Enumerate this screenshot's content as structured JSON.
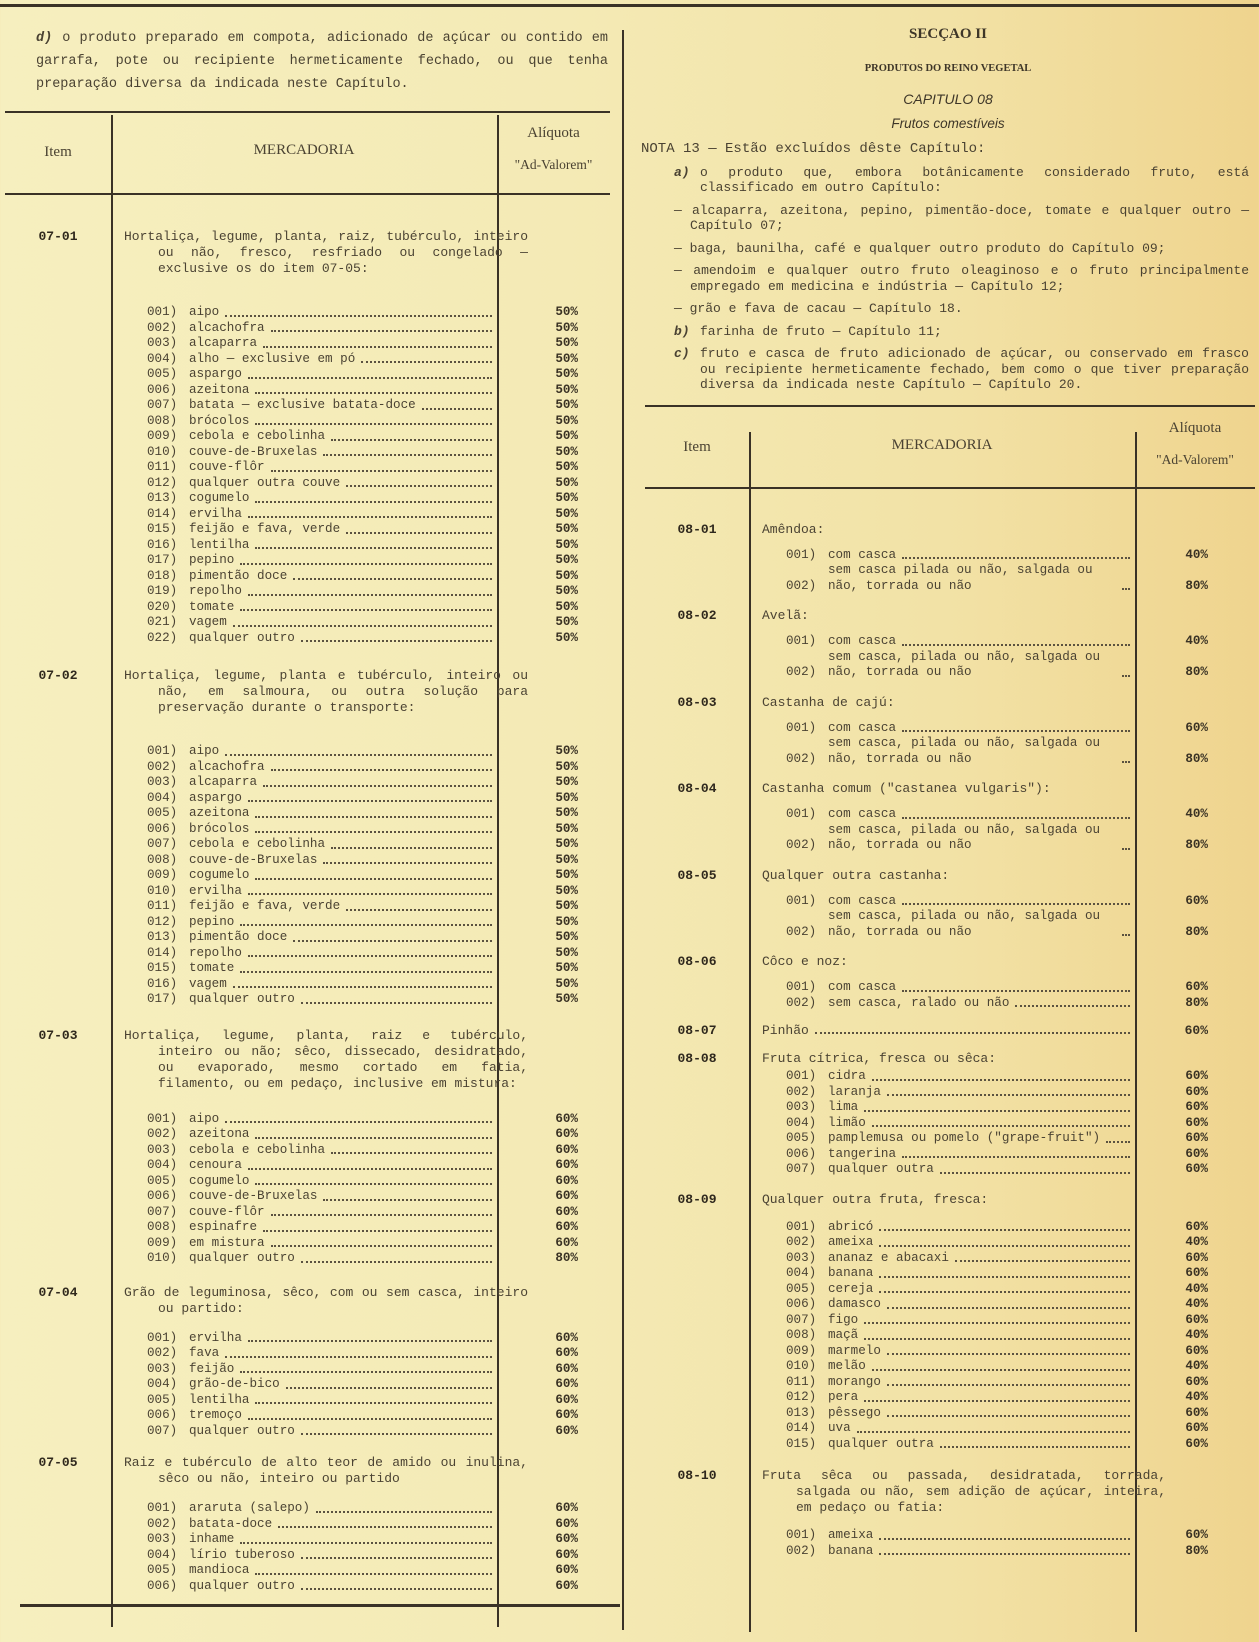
{
  "left": {
    "intro_note": {
      "marker": "d)",
      "text": "o produto preparado em compota, adicionado de açúcar ou contido em garrafa, pote ou recipiente hermeticamente fechado, ou que tenha preparação diversa da indicada neste Capítulo."
    },
    "table_header": {
      "item": "Item",
      "mercadoria": "MERCADORIA",
      "aliquota": "Alíquota",
      "ad_valorem": "\"Ad-Valorem\""
    },
    "groups": [
      {
        "code": "07-01",
        "description": "Hortaliça, legume, planta, raiz, tubérculo, inteiro ou não, fresco, resfriado ou congelado — exclusive os do item 07-05:",
        "items": [
          {
            "code": "001)",
            "label": "aipo",
            "rate": "50%"
          },
          {
            "code": "002)",
            "label": "alcachofra",
            "rate": "50%"
          },
          {
            "code": "003)",
            "label": "alcaparra",
            "rate": "50%"
          },
          {
            "code": "004)",
            "label": "alho — exclusive em pó",
            "rate": "50%"
          },
          {
            "code": "005)",
            "label": "aspargo",
            "rate": "50%"
          },
          {
            "code": "006)",
            "label": "azeitona",
            "rate": "50%"
          },
          {
            "code": "007)",
            "label": "batata — exclusive batata-doce",
            "rate": "50%"
          },
          {
            "code": "008)",
            "label": "brócolos",
            "rate": "50%"
          },
          {
            "code": "009)",
            "label": "cebola e cebolinha",
            "rate": "50%"
          },
          {
            "code": "010)",
            "label": "couve-de-Bruxelas",
            "rate": "50%"
          },
          {
            "code": "011)",
            "label": "couve-flôr",
            "rate": "50%"
          },
          {
            "code": "012)",
            "label": "qualquer outra couve",
            "rate": "50%"
          },
          {
            "code": "013)",
            "label": "cogumelo",
            "rate": "50%"
          },
          {
            "code": "014)",
            "label": "ervilha",
            "rate": "50%"
          },
          {
            "code": "015)",
            "label": "feijão e fava, verde",
            "rate": "50%"
          },
          {
            "code": "016)",
            "label": "lentilha",
            "rate": "50%"
          },
          {
            "code": "017)",
            "label": "pepino",
            "rate": "50%"
          },
          {
            "code": "018)",
            "label": "pimentão doce",
            "rate": "50%"
          },
          {
            "code": "019)",
            "label": "repolho",
            "rate": "50%"
          },
          {
            "code": "020)",
            "label": "tomate",
            "rate": "50%"
          },
          {
            "code": "021)",
            "label": "vagem",
            "rate": "50%"
          },
          {
            "code": "022)",
            "label": "qualquer outro",
            "rate": "50%"
          }
        ]
      },
      {
        "code": "07-02",
        "description": "Hortaliça, legume, planta e tubérculo, inteiro ou não, em salmoura, ou outra solução para preservação durante o transporte:",
        "items": [
          {
            "code": "001)",
            "label": "aipo",
            "rate": "50%"
          },
          {
            "code": "002)",
            "label": "alcachofra",
            "rate": "50%"
          },
          {
            "code": "003)",
            "label": "alcaparra",
            "rate": "50%"
          },
          {
            "code": "004)",
            "label": "aspargo",
            "rate": "50%"
          },
          {
            "code": "005)",
            "label": "azeitona",
            "rate": "50%"
          },
          {
            "code": "006)",
            "label": "brócolos",
            "rate": "50%"
          },
          {
            "code": "007)",
            "label": "cebola e cebolinha",
            "rate": "50%"
          },
          {
            "code": "008)",
            "label": "couve-de-Bruxelas",
            "rate": "50%"
          },
          {
            "code": "009)",
            "label": "cogumelo",
            "rate": "50%"
          },
          {
            "code": "010)",
            "label": "ervilha",
            "rate": "50%"
          },
          {
            "code": "011)",
            "label": "feijão e fava, verde",
            "rate": "50%"
          },
          {
            "code": "012)",
            "label": "pepino",
            "rate": "50%"
          },
          {
            "code": "013)",
            "label": "pimentão doce",
            "rate": "50%"
          },
          {
            "code": "014)",
            "label": "repolho",
            "rate": "50%"
          },
          {
            "code": "015)",
            "label": "tomate",
            "rate": "50%"
          },
          {
            "code": "016)",
            "label": "vagem",
            "rate": "50%"
          },
          {
            "code": "017)",
            "label": "qualquer outro",
            "rate": "50%"
          }
        ]
      },
      {
        "code": "07-03",
        "description": "Hortaliça, legume, planta, raiz e tubérculo, inteiro ou não; sêco, dissecado, desidratado, ou evaporado, mesmo cortado em fatia, filamento, ou em pedaço, inclusive em mistura:",
        "items": [
          {
            "code": "001)",
            "label": "aipo",
            "rate": "60%"
          },
          {
            "code": "002)",
            "label": "azeitona",
            "rate": "60%"
          },
          {
            "code": "003)",
            "label": "cebola e cebolinha",
            "rate": "60%"
          },
          {
            "code": "004)",
            "label": "cenoura",
            "rate": "60%"
          },
          {
            "code": "005)",
            "label": "cogumelo",
            "rate": "60%"
          },
          {
            "code": "006)",
            "label": "couve-de-Bruxelas",
            "rate": "60%"
          },
          {
            "code": "007)",
            "label": "couve-flôr",
            "rate": "60%"
          },
          {
            "code": "008)",
            "label": "espinafre",
            "rate": "60%"
          },
          {
            "code": "009)",
            "label": "em mistura",
            "rate": "60%"
          },
          {
            "code": "010)",
            "label": "qualquer outro",
            "rate": "80%"
          }
        ]
      },
      {
        "code": "07-04",
        "description": "Grão de leguminosa, sêco, com ou sem casca, inteiro ou partido:",
        "items": [
          {
            "code": "001)",
            "label": "ervilha",
            "rate": "60%"
          },
          {
            "code": "002)",
            "label": "fava",
            "rate": "60%"
          },
          {
            "code": "003)",
            "label": "feijão",
            "rate": "60%"
          },
          {
            "code": "004)",
            "label": "grão-de-bico",
            "rate": "60%"
          },
          {
            "code": "005)",
            "label": "lentilha",
            "rate": "60%"
          },
          {
            "code": "006)",
            "label": "tremoço",
            "rate": "60%"
          },
          {
            "code": "007)",
            "label": "qualquer outro",
            "rate": "60%"
          }
        ]
      },
      {
        "code": "07-05",
        "description": "Raiz e tubérculo de alto teor de amido ou inulina, sêco ou não, inteiro ou partido",
        "items": [
          {
            "code": "001)",
            "label": "araruta (salepo)",
            "rate": "60%"
          },
          {
            "code": "002)",
            "label": "batata-doce",
            "rate": "60%"
          },
          {
            "code": "003)",
            "label": "inhame",
            "rate": "60%"
          },
          {
            "code": "004)",
            "label": "lírio tuberoso",
            "rate": "60%"
          },
          {
            "code": "005)",
            "label": "mandioca",
            "rate": "60%"
          },
          {
            "code": "006)",
            "label": "qualquer outro",
            "rate": "60%"
          }
        ]
      }
    ]
  },
  "right": {
    "section": "SECÇAO II",
    "section_title": "PRODUTOS DO REINO VEGETAL",
    "chapter": "CAPITULO 08",
    "chapter_title": "Frutos comestíveis",
    "nota_title": "NOTA 13 — Estão excluídos dêste Capítulo:",
    "nota_a": {
      "marker": "a)",
      "text": "o produto que, embora botânicamente considerado fruto, está classificado em outro Capítulo:"
    },
    "nota_dashes": [
      "— alcaparra, azeitona, pepino, pimentão-doce, tomate e qualquer outro — Capítulo 07;",
      "— baga, baunilha, café e qualquer outro produto do Capítulo 09;",
      "— amendoim e qualquer outro fruto oleaginoso e o fruto principalmente empregado em medicina e indústria — Capítulo 12;",
      "— grão e fava de cacau — Capítulo 18."
    ],
    "nota_b": {
      "marker": "b)",
      "text": "farinha de fruto — Capítulo 11;"
    },
    "nota_c": {
      "marker": "c)",
      "text": "fruto e casca de fruto adicionado de açúcar, ou conservado em frasco ou recipiente hermeticamente fechado, bem como o que tiver preparação diversa da indicada neste Capítulo — Capítulo 20."
    },
    "table_header": {
      "item": "Item",
      "mercadoria": "MERCADORIA",
      "aliquota": "Alíquota",
      "ad_valorem": "\"Ad-Valorem\""
    },
    "groups": [
      {
        "code": "08-01",
        "description": "Amêndoa:",
        "items": [
          {
            "code": "001)",
            "label": "com casca",
            "rate": "40%"
          },
          {
            "code": "002)",
            "label": "sem casca pilada ou não, salgada ou não, torrada ou não",
            "rate": "80%"
          }
        ]
      },
      {
        "code": "08-02",
        "description": "Avelã:",
        "items": [
          {
            "code": "001)",
            "label": "com casca",
            "rate": "40%"
          },
          {
            "code": "002)",
            "label": "sem casca, pilada ou não, salgada ou não, torrada ou não",
            "rate": "80%"
          }
        ]
      },
      {
        "code": "08-03",
        "description": "Castanha de cajú:",
        "items": [
          {
            "code": "001)",
            "label": "com casca",
            "rate": "60%"
          },
          {
            "code": "002)",
            "label": "sem casca, pilada ou não, salgada ou não, torrada ou não",
            "rate": "80%"
          }
        ]
      },
      {
        "code": "08-04",
        "description": "Castanha comum (\"castanea vulgaris\"):",
        "items": [
          {
            "code": "001)",
            "label": "com casca",
            "rate": "40%"
          },
          {
            "code": "002)",
            "label": "sem casca, pilada ou não, salgada ou não, torrada ou não",
            "rate": "80%"
          }
        ]
      },
      {
        "code": "08-05",
        "description": "Qualquer outra castanha:",
        "items": [
          {
            "code": "001)",
            "label": "com casca",
            "rate": "60%"
          },
          {
            "code": "002)",
            "label": "sem casca, pilada ou não, salgada ou não, torrada ou não",
            "rate": "80%"
          }
        ]
      },
      {
        "code": "08-06",
        "description": "Côco e noz:",
        "items": [
          {
            "code": "001)",
            "label": "com casca",
            "rate": "60%"
          },
          {
            "code": "002)",
            "label": "sem casca, ralado ou não",
            "rate": "80%"
          }
        ]
      },
      {
        "code": "08-07",
        "description": "Pinhão",
        "rate": "60%",
        "items": []
      },
      {
        "code": "08-08",
        "description": "Fruta cítrica, fresca ou sêca:",
        "items": [
          {
            "code": "001)",
            "label": "cidra",
            "rate": "60%"
          },
          {
            "code": "002)",
            "label": "laranja",
            "rate": "60%"
          },
          {
            "code": "003)",
            "label": "lima",
            "rate": "60%"
          },
          {
            "code": "004)",
            "label": "limão",
            "rate": "60%"
          },
          {
            "code": "005)",
            "label": "pamplemusa ou pomelo (\"grape-fruit\")",
            "rate": "60%"
          },
          {
            "code": "006)",
            "label": "tangerina",
            "rate": "60%"
          },
          {
            "code": "007)",
            "label": "qualquer outra",
            "rate": "60%"
          }
        ]
      },
      {
        "code": "08-09",
        "description": "Qualquer outra fruta, fresca:",
        "items": [
          {
            "code": "001)",
            "label": "abricó",
            "rate": "60%"
          },
          {
            "code": "002)",
            "label": "ameixa",
            "rate": "40%"
          },
          {
            "code": "003)",
            "label": "ananaz e abacaxi",
            "rate": "60%"
          },
          {
            "code": "004)",
            "label": "banana",
            "rate": "60%"
          },
          {
            "code": "005)",
            "label": "cereja",
            "rate": "40%"
          },
          {
            "code": "006)",
            "label": "damasco",
            "rate": "40%"
          },
          {
            "code": "007)",
            "label": "figo",
            "rate": "60%"
          },
          {
            "code": "008)",
            "label": "maçã",
            "rate": "40%"
          },
          {
            "code": "009)",
            "label": "marmelo",
            "rate": "60%"
          },
          {
            "code": "010)",
            "label": "melão",
            "rate": "40%"
          },
          {
            "code": "011)",
            "label": "morango",
            "rate": "60%"
          },
          {
            "code": "012)",
            "label": "pera",
            "rate": "40%"
          },
          {
            "code": "013)",
            "label": "pêssego",
            "rate": "60%"
          },
          {
            "code": "014)",
            "label": "uva",
            "rate": "60%"
          },
          {
            "code": "015)",
            "label": "qualquer outra",
            "rate": "60%"
          }
        ]
      },
      {
        "code": "08-10",
        "description": "Fruta sêca ou passada, desidratada, torrada, salgada ou não, sem adição de açúcar, inteira, em pedaço ou fatia:",
        "items": [
          {
            "code": "001)",
            "label": "ameixa",
            "rate": "60%"
          },
          {
            "code": "002)",
            "label": "banana",
            "rate": "80%"
          }
        ]
      }
    ]
  }
}
